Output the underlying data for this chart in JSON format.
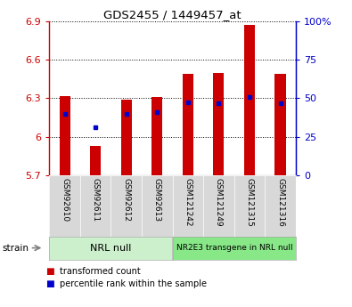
{
  "title": "GDS2455 / 1449457_at",
  "samples": [
    "GSM92610",
    "GSM92611",
    "GSM92612",
    "GSM92613",
    "GSM121242",
    "GSM121249",
    "GSM121315",
    "GSM121316"
  ],
  "red_values": [
    6.32,
    5.93,
    6.29,
    6.31,
    6.49,
    6.5,
    6.87,
    6.49
  ],
  "blue_values": [
    6.18,
    6.07,
    6.18,
    6.19,
    6.27,
    6.26,
    6.31,
    6.26
  ],
  "ymin": 5.7,
  "ymax": 6.9,
  "yticks": [
    5.7,
    6.0,
    6.3,
    6.6,
    6.9
  ],
  "ytick_labels": [
    "5.7",
    "6",
    "6.3",
    "6.6",
    "6.9"
  ],
  "right_ytick_pcts": [
    0,
    25,
    50,
    75,
    100
  ],
  "right_yticklabels": [
    "0",
    "25",
    "50",
    "75",
    "100%"
  ],
  "bar_color": "#cc0000",
  "blue_color": "#0000cc",
  "bar_width": 0.35,
  "group1_label": "NRL null",
  "group2_label": "NR2E3 transgene in NRL null",
  "group1_color": "#ccf0cc",
  "group2_color": "#88e888",
  "tick_label_bg": "#d8d8d8",
  "left_tick_color": "#cc0000",
  "right_tick_color": "#0000cc",
  "legend_red": "transformed count",
  "legend_blue": "percentile rank within the sample",
  "strain_label": "strain",
  "background_color": "#ffffff"
}
